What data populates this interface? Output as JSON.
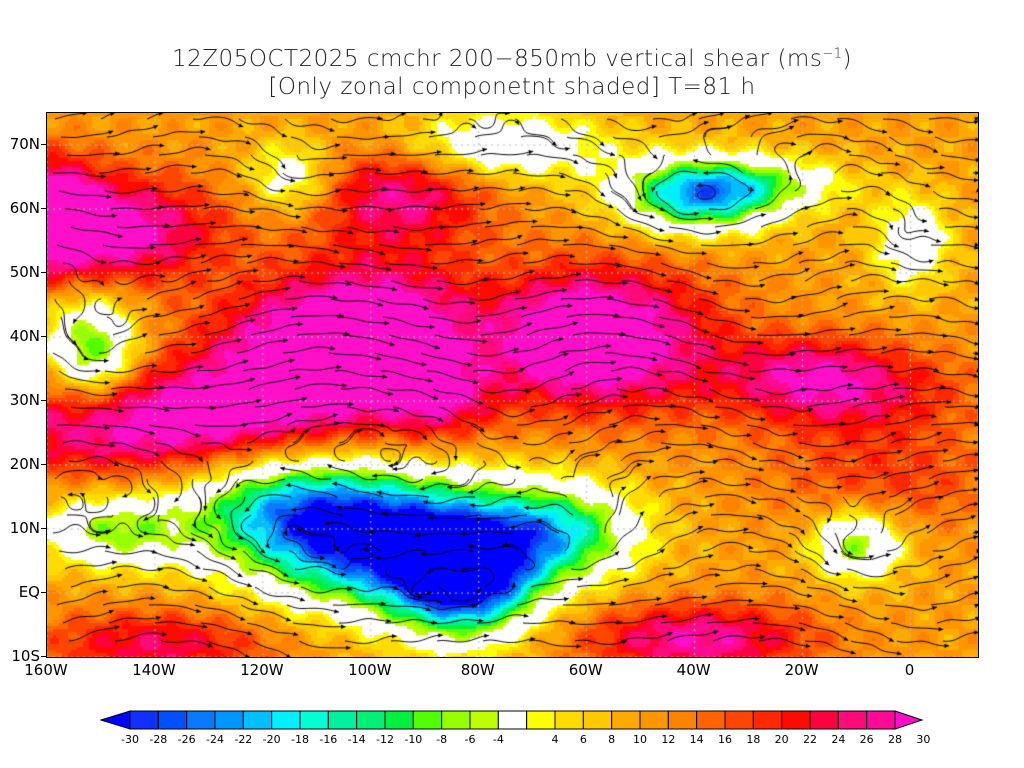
{
  "title": {
    "line1": "12Z05OCT2025 cmchr 200−850mb vertical shear (ms",
    "line1_sup": "−1",
    "line1_end": ")",
    "line2": "[Only zonal componetnt shaded] T=81 h"
  },
  "axes": {
    "lat_labels": [
      "70N",
      "60N",
      "50N",
      "40N",
      "30N",
      "20N",
      "10N",
      "EQ",
      "10S"
    ],
    "lat_values": [
      70,
      60,
      50,
      40,
      30,
      20,
      10,
      0,
      -10
    ],
    "lon_labels": [
      "160W",
      "140W",
      "120W",
      "100W",
      "80W",
      "60W",
      "40W",
      "20W",
      "0"
    ],
    "lon_values": [
      -160,
      -140,
      -120,
      -100,
      -80,
      -60,
      -40,
      -20,
      0
    ],
    "lon_range": [
      -160,
      12.5
    ],
    "lat_range": [
      -10,
      75
    ]
  },
  "colorbar": {
    "labels": [
      "-30",
      "-28",
      "-26",
      "-24",
      "-22",
      "-20",
      "-18",
      "-16",
      "-14",
      "-12",
      "-10",
      "-8",
      "-6",
      "-4",
      "4",
      "6",
      "8",
      "10",
      "12",
      "14",
      "16",
      "18",
      "20",
      "22",
      "24",
      "26",
      "28",
      "30"
    ],
    "low_arrow_color": "#0000ff",
    "high_arrow_color": "#ff10c8",
    "colors": [
      "#1030ff",
      "#0050ff",
      "#0a78ff",
      "#0096ff",
      "#00beff",
      "#00f0ff",
      "#00ffd2",
      "#00f0a0",
      "#00f078",
      "#00f040",
      "#50ff00",
      "#96ff00",
      "#beff00",
      "#ffffff",
      "#ffff00",
      "#ffdc00",
      "#ffc800",
      "#ffaa00",
      "#ff9600",
      "#ff8200",
      "#ff6400",
      "#ff4600",
      "#ff2800",
      "#ff0a00",
      "#ff0040",
      "#ff0a78",
      "#ff0a96"
    ]
  }
}
